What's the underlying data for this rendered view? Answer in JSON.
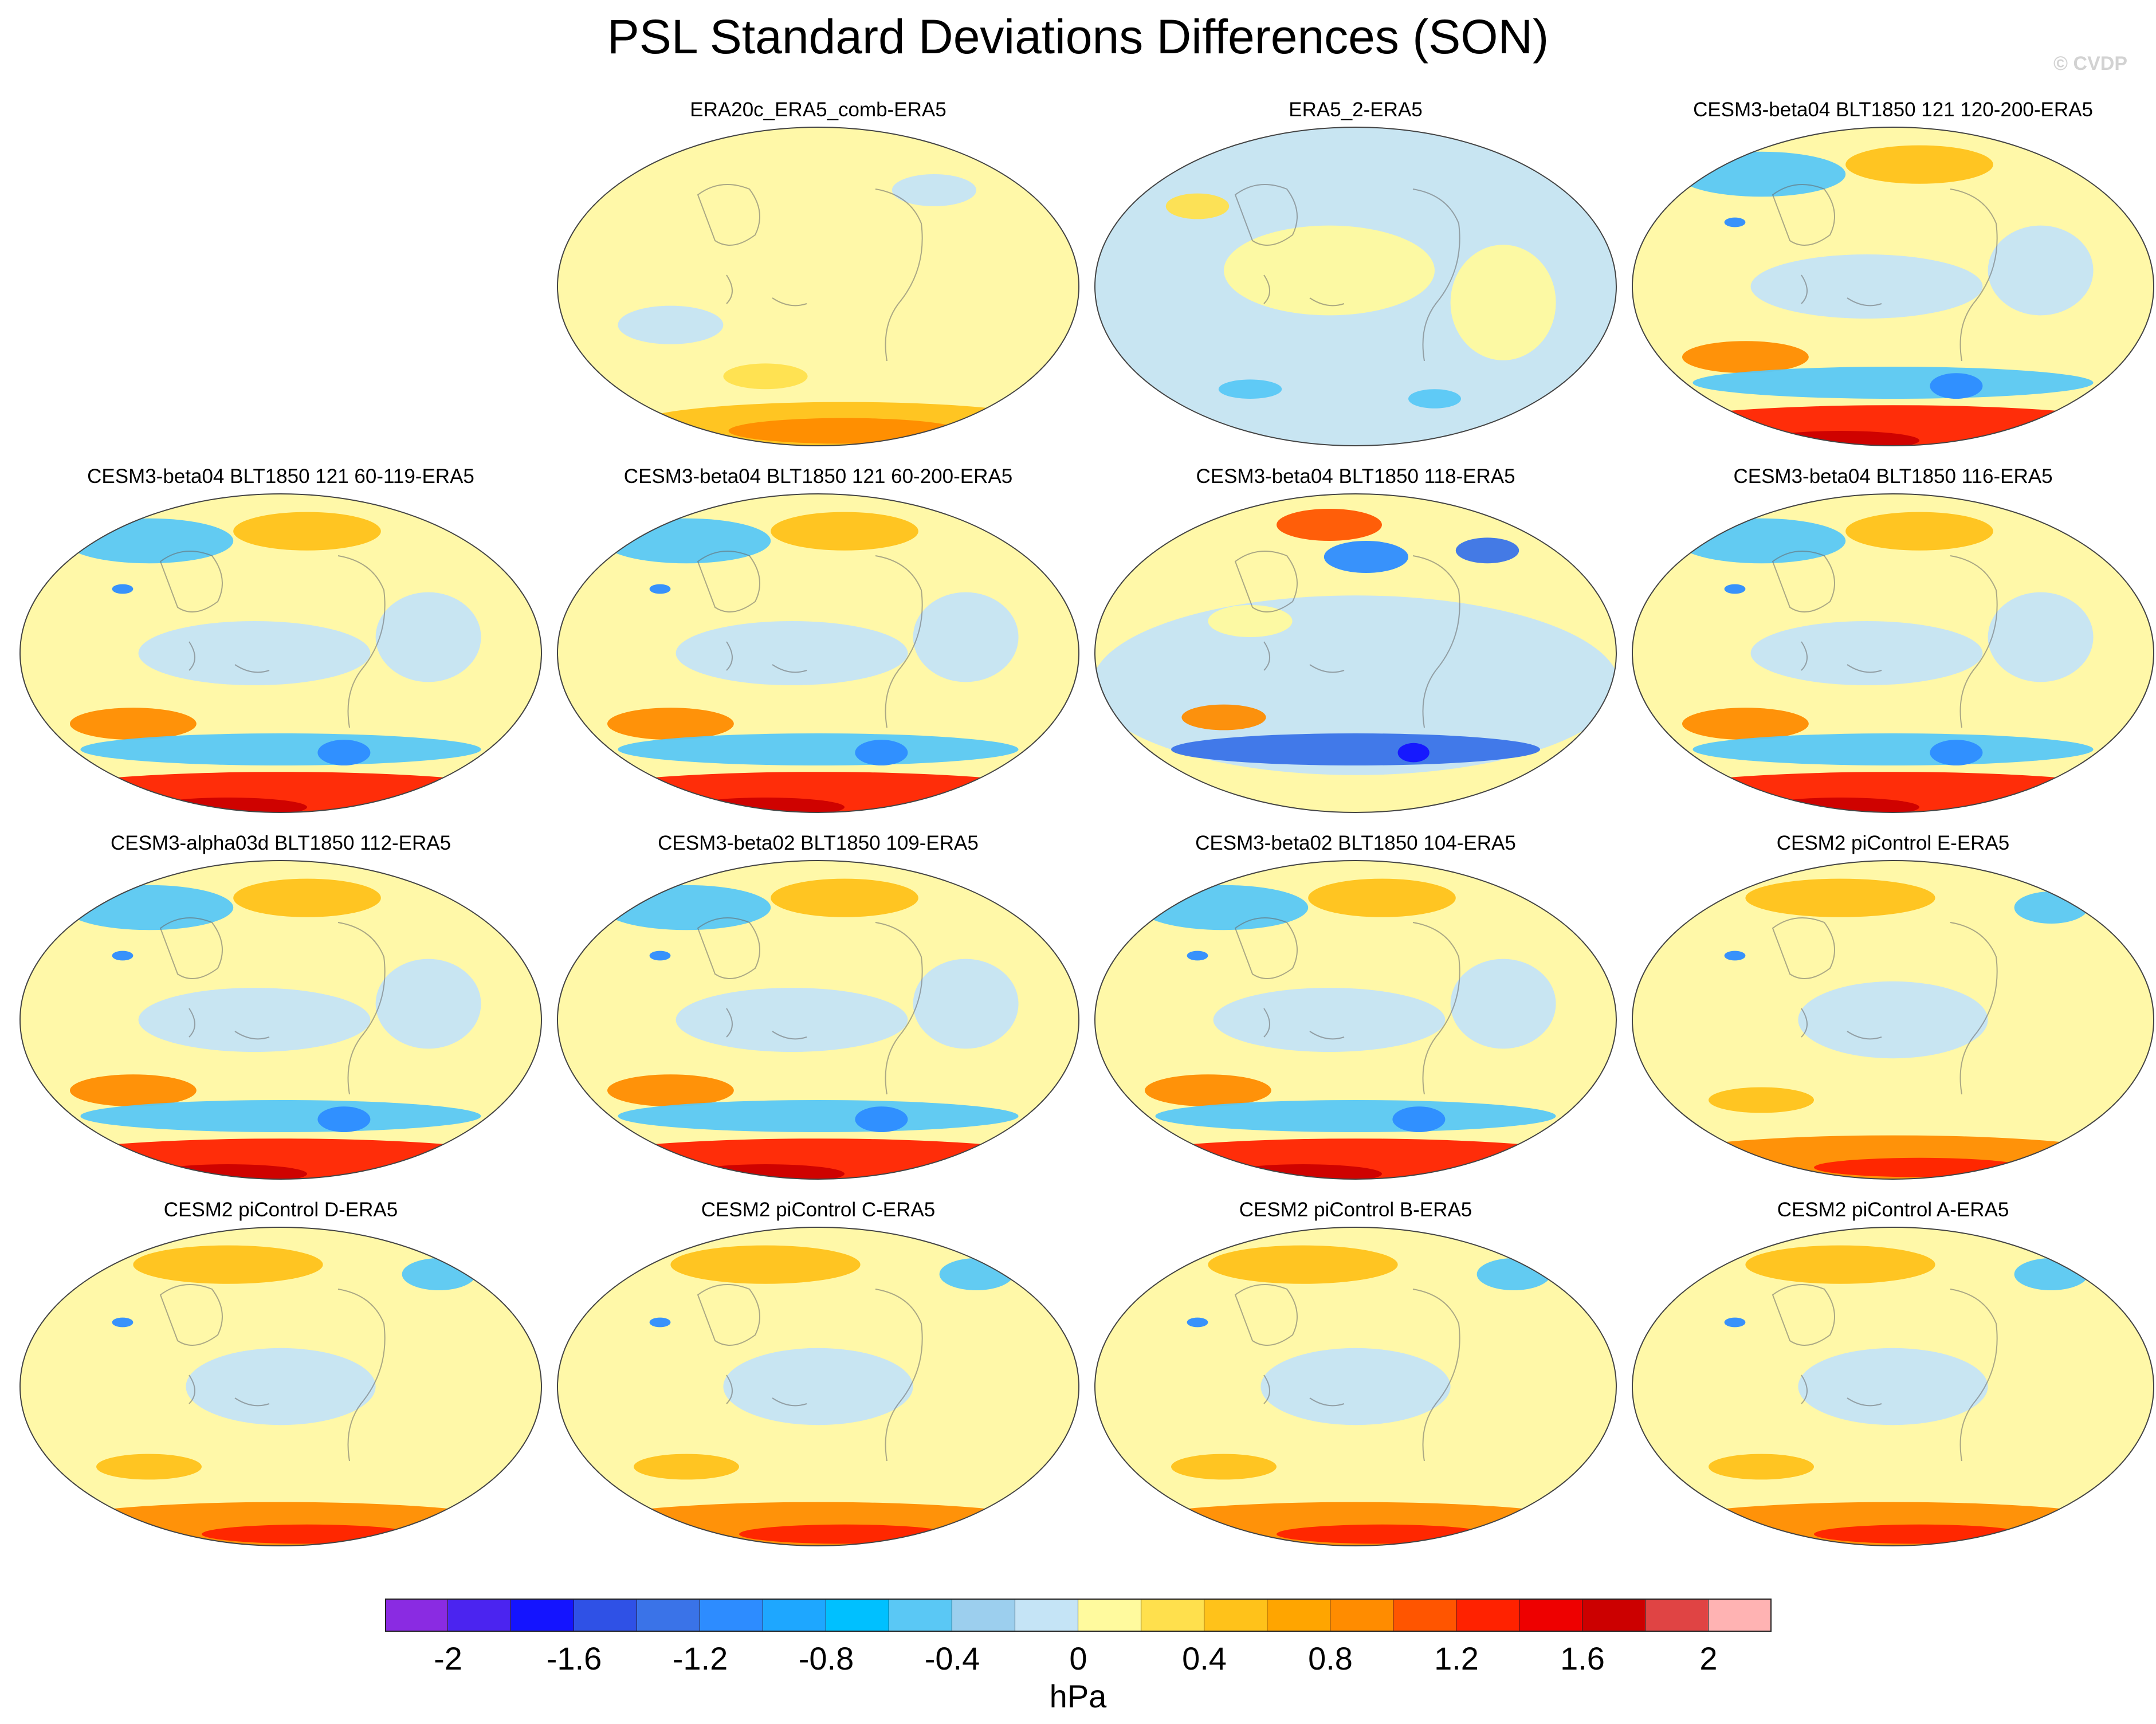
{
  "title": "PSL Standard Deviations Differences (SON)",
  "credit": "© CVDP",
  "units": "hPa",
  "colorbar": {
    "colors": [
      "#8a2be2",
      "#4b24f0",
      "#1414ff",
      "#2f51e6",
      "#3a73e8",
      "#2d8cff",
      "#1ea7ff",
      "#00c0ff",
      "#5ac8f5",
      "#9ccfee",
      "#c5e4f6",
      "#fffa9e",
      "#ffe04d",
      "#ffc21a",
      "#ffa500",
      "#ff8c00",
      "#ff5500",
      "#ff2200",
      "#ee0000",
      "#cc0000",
      "#e04444",
      "#ffb3b3"
    ],
    "tick_labels": [
      "-2",
      "-1.6",
      "-1.2",
      "-0.8",
      "-0.4",
      "0",
      "0.4",
      "0.8",
      "1.2",
      "1.6",
      "2"
    ]
  },
  "panels": [
    {
      "title": "ERA20c_ERA5_comb-ERA5",
      "style": "weak_warm"
    },
    {
      "title": "ERA5_2-ERA5",
      "style": "weak_cool"
    },
    {
      "title": "CESM3-beta04 BLT1850 121 120-200-ERA5",
      "style": "strong"
    },
    {
      "title": "CESM3-beta04 BLT1850 121 60-119-ERA5",
      "style": "strong"
    },
    {
      "title": "CESM3-beta04 BLT1850 121 60-200-ERA5",
      "style": "strong"
    },
    {
      "title": "CESM3-beta04 BLT1850 118-ERA5",
      "style": "cool"
    },
    {
      "title": "CESM3-beta04 BLT1850 116-ERA5",
      "style": "strong"
    },
    {
      "title": "CESM3-alpha03d BLT1850 112-ERA5",
      "style": "strong"
    },
    {
      "title": "CESM3-beta02 BLT1850 109-ERA5",
      "style": "strong"
    },
    {
      "title": "CESM3-beta02 BLT1850 104-ERA5",
      "style": "strong"
    },
    {
      "title": "CESM2 piControl E-ERA5",
      "style": "moderate"
    },
    {
      "title": "CESM2 piControl D-ERA5",
      "style": "moderate"
    },
    {
      "title": "CESM2 piControl C-ERA5",
      "style": "moderate"
    },
    {
      "title": "CESM2 piControl B-ERA5",
      "style": "moderate"
    },
    {
      "title": "CESM2 piControl A-ERA5",
      "style": "moderate"
    }
  ]
}
